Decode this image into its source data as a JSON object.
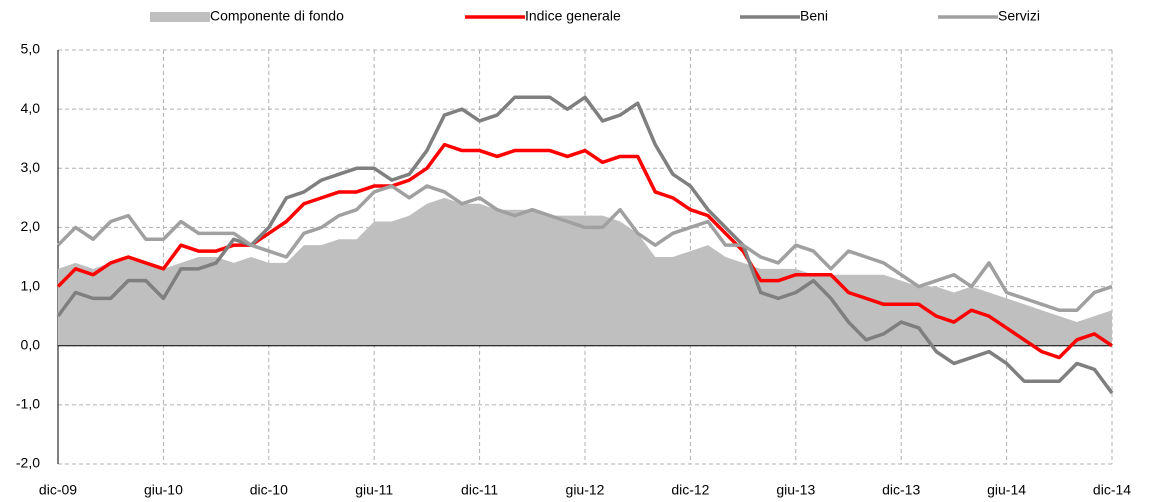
{
  "chart_data": {
    "type": "line",
    "categories": [
      "dic-09",
      null,
      null,
      null,
      null,
      null,
      "giu-10",
      null,
      null,
      null,
      null,
      null,
      "dic-10",
      null,
      null,
      null,
      null,
      null,
      "giu-11",
      null,
      null,
      null,
      null,
      null,
      "dic-11",
      null,
      null,
      null,
      null,
      null,
      "giu-12",
      null,
      null,
      null,
      null,
      null,
      "dic-12",
      null,
      null,
      null,
      null,
      null,
      "giu-13",
      null,
      null,
      null,
      null,
      null,
      "dic-13",
      null,
      null,
      null,
      null,
      null,
      "giu-14",
      null,
      null,
      null,
      null,
      null,
      "dic-14"
    ],
    "series": [
      {
        "name": "Componente di fondo",
        "color": "#bfbfbf",
        "style": "area",
        "values": [
          1.3,
          1.4,
          1.3,
          1.4,
          1.5,
          1.4,
          1.3,
          1.4,
          1.5,
          1.5,
          1.4,
          1.5,
          1.4,
          1.4,
          1.7,
          1.7,
          1.8,
          1.8,
          2.1,
          2.1,
          2.2,
          2.4,
          2.5,
          2.4,
          2.4,
          2.3,
          2.3,
          2.3,
          2.2,
          2.2,
          2.2,
          2.2,
          2.1,
          1.9,
          1.5,
          1.5,
          1.6,
          1.7,
          1.5,
          1.4,
          1.3,
          1.3,
          1.3,
          1.2,
          1.2,
          1.2,
          1.2,
          1.2,
          1.1,
          1.0,
          1.0,
          0.9,
          1.0,
          0.9,
          0.8,
          0.7,
          0.6,
          0.5,
          0.4,
          0.5,
          0.6
        ]
      },
      {
        "name": "Indice generale",
        "color": "#ff0000",
        "style": "line",
        "values": [
          1.0,
          1.3,
          1.2,
          1.4,
          1.5,
          1.4,
          1.3,
          1.7,
          1.6,
          1.6,
          1.7,
          1.7,
          1.9,
          2.1,
          2.4,
          2.5,
          2.6,
          2.6,
          2.7,
          2.7,
          2.8,
          3.0,
          3.4,
          3.3,
          3.3,
          3.2,
          3.3,
          3.3,
          3.3,
          3.2,
          3.3,
          3.1,
          3.2,
          3.2,
          2.6,
          2.5,
          2.3,
          2.2,
          1.9,
          1.6,
          1.1,
          1.1,
          1.2,
          1.2,
          1.2,
          0.9,
          0.8,
          0.7,
          0.7,
          0.7,
          0.5,
          0.4,
          0.6,
          0.5,
          0.3,
          0.1,
          -0.1,
          -0.2,
          0.1,
          0.2,
          0.0
        ]
      },
      {
        "name": "Beni",
        "color": "#7f7f7f",
        "style": "line",
        "values": [
          0.5,
          0.9,
          0.8,
          0.8,
          1.1,
          1.1,
          0.8,
          1.3,
          1.3,
          1.4,
          1.8,
          1.7,
          2.0,
          2.5,
          2.6,
          2.8,
          2.9,
          3.0,
          3.0,
          2.8,
          2.9,
          3.3,
          3.9,
          4.0,
          3.8,
          3.9,
          4.2,
          4.2,
          4.2,
          4.0,
          4.2,
          3.8,
          3.9,
          4.1,
          3.4,
          2.9,
          2.7,
          2.3,
          2.0,
          1.7,
          0.9,
          0.8,
          0.9,
          1.1,
          0.8,
          0.4,
          0.1,
          0.2,
          0.4,
          0.3,
          -0.1,
          -0.3,
          -0.2,
          -0.1,
          -0.3,
          -0.6,
          -0.6,
          -0.6,
          -0.3,
          -0.4,
          -0.8
        ]
      },
      {
        "name": "Servizi",
        "color": "#a0a0a0",
        "style": "line",
        "values": [
          1.7,
          2.0,
          1.8,
          2.1,
          2.2,
          1.8,
          1.8,
          2.1,
          1.9,
          1.9,
          1.9,
          1.7,
          1.6,
          1.5,
          1.9,
          2.0,
          2.2,
          2.3,
          2.6,
          2.7,
          2.5,
          2.7,
          2.6,
          2.4,
          2.5,
          2.3,
          2.2,
          2.3,
          2.2,
          2.1,
          2.0,
          2.0,
          2.3,
          1.9,
          1.7,
          1.9,
          2.0,
          2.1,
          1.7,
          1.7,
          1.5,
          1.4,
          1.7,
          1.6,
          1.3,
          1.6,
          1.5,
          1.4,
          1.2,
          1.0,
          1.1,
          1.2,
          1.0,
          1.4,
          0.9,
          0.8,
          0.7,
          0.6,
          0.6,
          0.9,
          1.0
        ]
      }
    ],
    "ylim": [
      -2,
      5
    ],
    "yticks": [
      {
        "value": -2,
        "label": "-2,0"
      },
      {
        "value": -1,
        "label": "-1,0"
      },
      {
        "value": 0,
        "label": "0,0"
      },
      {
        "value": 1,
        "label": "1,0"
      },
      {
        "value": 2,
        "label": "2,0"
      },
      {
        "value": 3,
        "label": "3,0"
      },
      {
        "value": 4,
        "label": "4,0"
      },
      {
        "value": 5,
        "label": "5,0"
      }
    ],
    "grid": true,
    "legend": "top"
  }
}
